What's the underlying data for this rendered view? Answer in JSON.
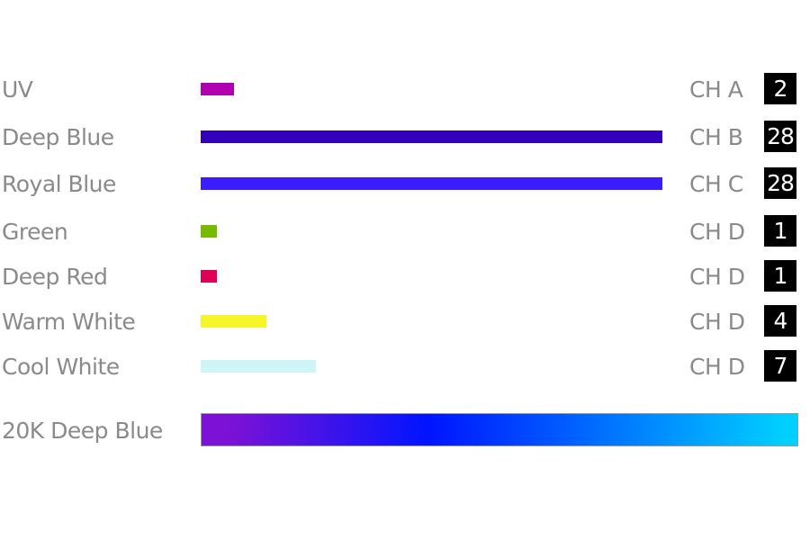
{
  "max_value": 28,
  "channels": [
    {
      "label": "UV",
      "color": "#b000b0",
      "channel": "CH A",
      "value": 2
    },
    {
      "label": "Deep Blue",
      "color": "#3300bb",
      "channel": "CH B",
      "value": 28
    },
    {
      "label": "Royal Blue",
      "color": "#3a1cff",
      "channel": "CH C",
      "value": 28
    },
    {
      "label": "Green",
      "color": "#77bb00",
      "channel": "CH D",
      "value": 1
    },
    {
      "label": "Deep Red",
      "color": "#dd0055",
      "channel": "CH D",
      "value": 1
    },
    {
      "label": "Warm White",
      "color": "#f5f52a",
      "channel": "CH D",
      "value": 4
    },
    {
      "label": "Cool White",
      "color": "#ccf5f7",
      "channel": "CH D",
      "value": 7
    }
  ],
  "spectrum": {
    "label": "20K Deep Blue",
    "colors": [
      "#7b12d6",
      "#0014ff",
      "#00d0ff"
    ]
  }
}
